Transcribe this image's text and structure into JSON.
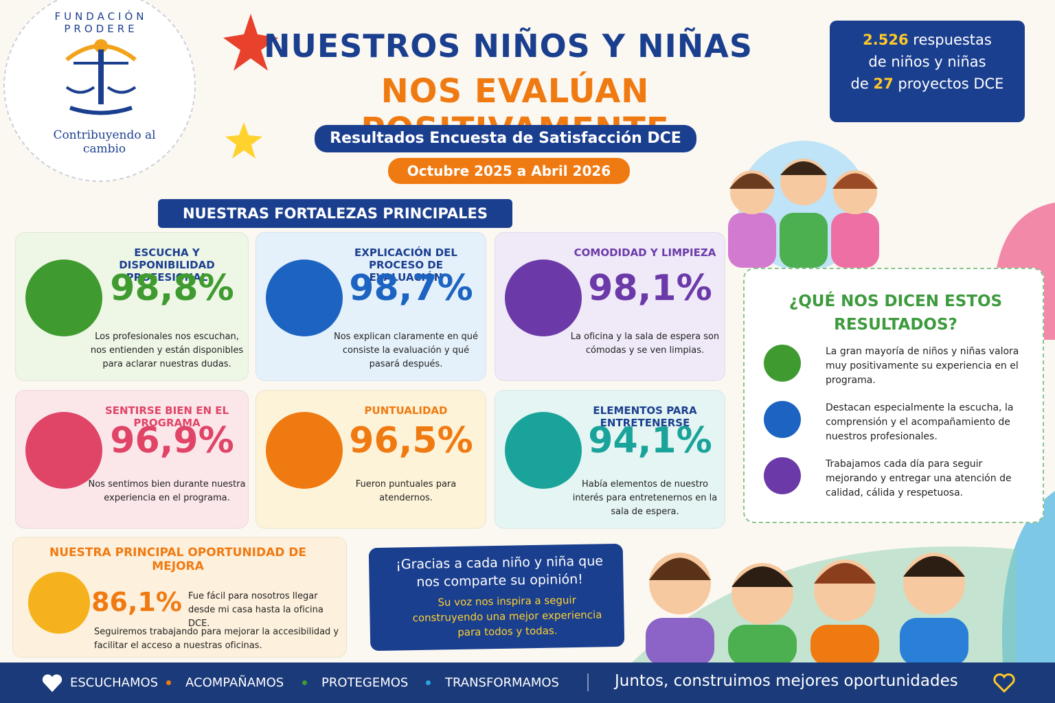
{
  "logo": {
    "name": "FUNDACIÓN PRODERE",
    "tagline": "Contribuyendo al cambio"
  },
  "header": {
    "title_line1": "NUESTROS NIÑOS Y NIÑAS",
    "title_line2": "NOS EVALÚAN POSITIVAMENTE",
    "subtitle": "Resultados Encuesta de Satisfacción DCE",
    "period": "Octubre 2025 a Abril 2026"
  },
  "summary": {
    "responses": "2.526",
    "responses_label": "respuestas",
    "line2": "de niños y niñas",
    "line3_pre": "de",
    "projects": "27",
    "projects_label": "proyectos DCE"
  },
  "strengths": {
    "title": "NUESTRAS FORTALEZAS PRINCIPALES",
    "cards": [
      {
        "title": "ESCUCHA Y DISPONIBILIDAD PROFESIONAL",
        "value": "98,8%",
        "text": "Los profesionales nos escuchan, nos entienden y están disponibles para aclarar nuestras dudas."
      },
      {
        "title": "EXPLICACIÓN DEL PROCESO DE EVALUACIÓN",
        "value": "98,7%",
        "text": "Nos explican claramente en qué consiste la evaluación y qué pasará después."
      },
      {
        "title": "COMODIDAD Y LIMPIEZA",
        "value": "98,1%",
        "text": "La oficina y la sala de espera son cómodas y se ven limpias."
      },
      {
        "title": "SENTIRSE BIEN EN EL PROGRAMA",
        "value": "96,9%",
        "text": "Nos sentimos bien durante nuestra experiencia en el programa."
      },
      {
        "title": "PUNTUALIDAD",
        "value": "96,5%",
        "text": "Fueron puntuales para atendernos."
      },
      {
        "title": "ELEMENTOS PARA ENTRETENERSE",
        "value": "94,1%",
        "text": "Había elementos de nuestro interés para entretenernos en la sala de espera."
      }
    ]
  },
  "improvement": {
    "title": "NUESTRA PRINCIPAL OPORTUNIDAD DE MEJORA",
    "value": "86,1%",
    "text": "Fue fácil para nosotros llegar desde mi casa hasta la oficina DCE.",
    "followup": "Seguiremos trabajando para mejorar la accesibilidad y facilitar el acceso a nuestras oficinas."
  },
  "thanks": {
    "title": "¡Gracias a cada niño y niña que nos comparte su opinión!",
    "text": "Su voz nos inspira a seguir construyendo una mejor experiencia para todos y todas."
  },
  "insights": {
    "title": "¿QUÉ NOS DICEN ESTOS RESULTADOS?",
    "items": [
      "La gran mayoría de niños y niñas valora muy positivamente su experiencia en el programa.",
      "Destacan especialmente la escucha, la comprensión y el acompañamiento de nuestros profesionales.",
      "Trabajamos cada día para seguir mejorando y entregar una atención de calidad, cálida y respetuosa."
    ]
  },
  "footer": {
    "values": [
      "ESCUCHAMOS",
      "ACOMPAÑAMOS",
      "PROTEGEMOS",
      "TRANSFORMAMOS"
    ],
    "motto": "Juntos, construimos mejores oportunidades"
  }
}
